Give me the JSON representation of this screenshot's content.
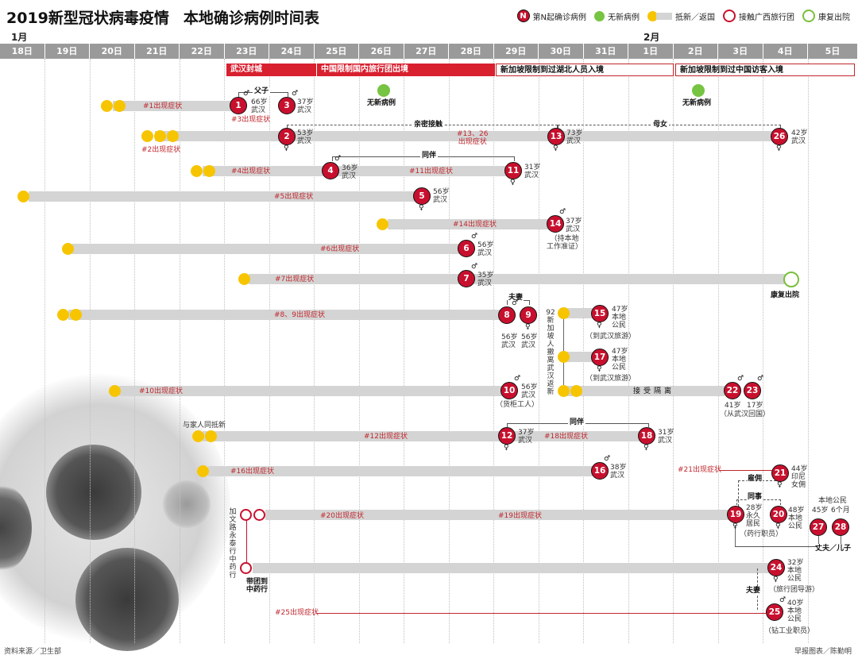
{
  "header": {
    "title": "2019新型冠状病毒疫情",
    "subtitle": "本地确诊病例时间表"
  },
  "legend": {
    "case_mark": "N",
    "case": "第N起确诊病例",
    "no_new": "无新病例",
    "arrival": "抵新／返国",
    "contact_tour": "接触广西旅行团",
    "recovered": "康复出院"
  },
  "months": {
    "jan": "1月",
    "feb": "2月"
  },
  "dates": [
    "18日",
    "19日",
    "20日",
    "21日",
    "22日",
    "23日",
    "24日",
    "25日",
    "26日",
    "27日",
    "28日",
    "29日",
    "30日",
    "31日",
    "1日",
    "2日",
    "3日",
    "4日",
    "5日"
  ],
  "events": {
    "lockdown": "武汉封城",
    "china_tours": "中国限制国内旅行团出境",
    "sg_hubei": "新加坡限制到过湖北人员入境",
    "sg_china": "新加坡限制到过中国访客入境"
  },
  "no_new_label": "无新病例",
  "cases": {
    "c1": {
      "num": "1",
      "sym": "♂",
      "info": [
        "66岁",
        "武汉"
      ]
    },
    "c2": {
      "num": "2",
      "sym": "♀",
      "info": [
        "53岁",
        "武汉"
      ]
    },
    "c3": {
      "num": "3",
      "sym": "♂",
      "info": [
        "37岁",
        "武汉"
      ]
    },
    "c4": {
      "num": "4",
      "sym": "♂",
      "info": [
        "36岁",
        "武汉"
      ]
    },
    "c5": {
      "num": "5",
      "sym": "♀",
      "info": [
        "56岁",
        "武汉"
      ]
    },
    "c6": {
      "num": "6",
      "sym": "♂",
      "info": [
        "56岁",
        "武汉"
      ]
    },
    "c7": {
      "num": "7",
      "sym": "♂",
      "info": [
        "35岁",
        "武汉"
      ]
    },
    "c8": {
      "num": "8",
      "sym": "♂",
      "info": [
        "56岁",
        "武汉"
      ]
    },
    "c9": {
      "num": "9",
      "sym": "♀",
      "info": [
        "56岁",
        "武汉"
      ]
    },
    "c10": {
      "num": "10",
      "sym": "♂",
      "info": [
        "56岁",
        "武汉",
        "（货柜工人）"
      ]
    },
    "c11": {
      "num": "11",
      "sym": "♀",
      "info": [
        "31岁",
        "武汉"
      ]
    },
    "c12": {
      "num": "12",
      "sym": "♀",
      "info": [
        "37岁",
        "武汉"
      ]
    },
    "c13": {
      "num": "13",
      "sym": "♀",
      "info": [
        "73岁",
        "武汉"
      ]
    },
    "c14": {
      "num": "14",
      "sym": "♂",
      "info": [
        "37岁",
        "武汉",
        "（持本地",
        "工作准证）"
      ]
    },
    "c15": {
      "num": "15",
      "sym": "♀",
      "info": [
        "47岁",
        "本地",
        "公民",
        "（到武汉旅游）"
      ]
    },
    "c16": {
      "num": "16",
      "sym": "♂",
      "info": [
        "38岁",
        "武汉"
      ]
    },
    "c17": {
      "num": "17",
      "sym": "♀",
      "info": [
        "47岁",
        "本地",
        "公民",
        "（到武汉旅游）"
      ]
    },
    "c18": {
      "num": "18",
      "sym": "♀",
      "info": [
        "31岁",
        "武汉"
      ]
    },
    "c19": {
      "num": "19",
      "sym": "♀",
      "info": [
        "28岁",
        "永久",
        "居民",
        "（药行职员）"
      ]
    },
    "c20": {
      "num": "20",
      "sym": "♀",
      "info": [
        "48岁",
        "本地",
        "公民"
      ]
    },
    "c21": {
      "num": "21",
      "sym": "♀",
      "info": [
        "44岁",
        "印尼",
        "女佣"
      ]
    },
    "c22": {
      "num": "22",
      "sym": "♂",
      "info": [
        "41岁"
      ]
    },
    "c23": {
      "num": "23",
      "sym": "♂",
      "info": [
        "17岁"
      ]
    },
    "c24": {
      "num": "24",
      "sym": "♀",
      "info": [
        "32岁",
        "本地",
        "公民",
        "（旅行团导游）"
      ]
    },
    "c25": {
      "num": "25",
      "sym": "♂",
      "info": [
        "40岁",
        "本地",
        "公民",
        "（钻工业职员）"
      ]
    },
    "c26": {
      "num": "26",
      "sym": "♀",
      "info": [
        "42岁",
        "武汉"
      ]
    },
    "c27": {
      "num": "27",
      "info": [
        "45岁"
      ]
    },
    "c28": {
      "num": "28",
      "info": [
        "6个月"
      ]
    }
  },
  "symptoms": {
    "s1": "#1出现症状",
    "s2": "#2出现症状",
    "s3": "#3出现症状",
    "s4": "#4出现症状",
    "s5": "#5出现症状",
    "s6": "#6出现症状",
    "s7": "#7出现症状",
    "s89": "#8、9出现症状",
    "s10": "#10出现症状",
    "s11": "#11出现症状",
    "s12": "#12出现症状",
    "s13_26": [
      "#13、26",
      "出现症状"
    ],
    "s14": "#14出现症状",
    "s16": "#16出现症状",
    "s18": "#18出现症状",
    "s19": "#19出现症状",
    "s20": "#20出现症状",
    "s21": "#21出现症状",
    "s25": "#25出现症状"
  },
  "relations": {
    "father_son": "父子",
    "close_contact": "亲密接触",
    "mother_daughter": "母女",
    "companion_a": "同伴",
    "spouse_a": "夫妻",
    "companion_b": "同伴",
    "employ": "雇佣",
    "colleague": "同事",
    "spouse_b": "夫妻",
    "husband_son": "丈夫／儿子",
    "local_citizen": "本地公民"
  },
  "notes": {
    "evacuees": "92新加坡人撤离武汉返新",
    "quarantine": "接受隔离",
    "from_wuhan": "（从武汉回国）",
    "with_family": "与家人同抵新",
    "guangxi_tour": "加文路永泰行中药行",
    "tour_to_shop": [
      "带团到",
      "中药行"
    ],
    "recovered": "康复出院"
  },
  "footer": {
    "source": "资料来源／卫生部",
    "credit": "早报图表／陈勤明"
  }
}
